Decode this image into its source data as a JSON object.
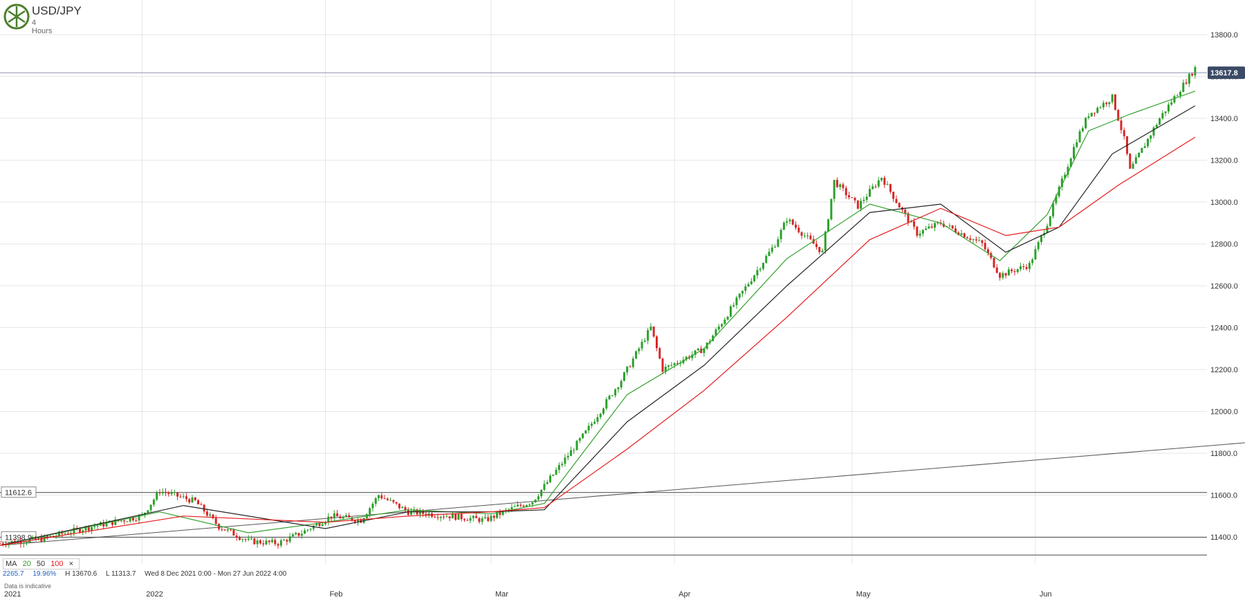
{
  "header": {
    "symbol": "USD/JPY",
    "timeframe": "4 Hours"
  },
  "legend": {
    "ma_label": "MA",
    "ma_periods": [
      "20",
      "50",
      "100"
    ],
    "close_symbol": "×"
  },
  "info": {
    "range_value": "2265.7",
    "range_pct": "19.96%",
    "high": "H 13670.6",
    "low": "L 11313.7",
    "period": "Wed 8 Dec 2021 0:00 - Mon 27 Jun 2022 4:00"
  },
  "note": "Data is indicative",
  "chart_data": {
    "type": "line",
    "title": "USD/JPY",
    "subtitle": "4 Hours",
    "ylim": [
      11300,
      13900
    ],
    "y_ticks": [
      11400,
      11600,
      11800,
      12000,
      12200,
      12400,
      12600,
      12800,
      13000,
      13200,
      13400,
      13600,
      13800
    ],
    "y_tick_labels": [
      "11400.0",
      "11600.0",
      "11800.0",
      "12000.0",
      "12200.0",
      "12400.0",
      "12600.0",
      "12800.0",
      "13000.0",
      "13200.0",
      "13400.0",
      "13600.0",
      "13800.0"
    ],
    "x_labels": [
      "2021",
      "2022",
      "Feb",
      "Mar",
      "Apr",
      "May",
      "Jun"
    ],
    "x_dates": [
      "2021-12-08",
      "2022-01-01",
      "2022-02-01",
      "2022-03-01",
      "2022-04-01",
      "2022-05-01",
      "2022-06-01"
    ],
    "x_range": [
      "2021-12-08",
      "2022-06-30"
    ],
    "current_price": 13617.8,
    "current_price_label": "13617.8",
    "horizontal_levels": [
      {
        "value": 11612.6,
        "label": "11612.6"
      },
      {
        "value": 11398.9,
        "label": "11398.9"
      },
      {
        "value": 11313.7,
        "label": ""
      }
    ],
    "trendline": {
      "start": [
        "2021-12-08",
        11360
      ],
      "end": [
        "2022-06-30",
        11850
      ]
    },
    "price_path": {
      "dates": [
        "2021-12-08",
        "2021-12-15",
        "2021-12-22",
        "2022-01-01",
        "2022-01-04",
        "2022-01-10",
        "2022-01-14",
        "2022-01-19",
        "2022-01-24",
        "2022-01-28",
        "2022-02-02",
        "2022-02-07",
        "2022-02-10",
        "2022-02-15",
        "2022-02-22",
        "2022-02-28",
        "2022-03-04",
        "2022-03-08",
        "2022-03-11",
        "2022-03-17",
        "2022-03-23",
        "2022-03-28",
        "2022-03-30",
        "2022-04-06",
        "2022-04-12",
        "2022-04-18",
        "2022-04-20",
        "2022-04-26",
        "2022-04-28",
        "2022-05-02",
        "2022-05-06",
        "2022-05-09",
        "2022-05-12",
        "2022-05-16",
        "2022-05-23",
        "2022-05-26",
        "2022-05-31",
        "2022-06-03",
        "2022-06-08",
        "2022-06-10",
        "2022-06-14",
        "2022-06-16",
        "2022-06-17",
        "2022-06-22",
        "2022-06-28"
      ],
      "values": [
        11370,
        11390,
        11440,
        11500,
        11620,
        11570,
        11450,
        11380,
        11370,
        11420,
        11500,
        11480,
        11600,
        11520,
        11500,
        11480,
        11530,
        11570,
        11680,
        11900,
        12150,
        12400,
        12200,
        12300,
        12550,
        12800,
        12920,
        12760,
        13100,
        12980,
        13120,
        12980,
        12850,
        12900,
        12800,
        12650,
        12700,
        12900,
        13300,
        13420,
        13500,
        13300,
        13150,
        13400,
        13640
      ]
    },
    "series": [
      {
        "name": "20",
        "color": "#33a02c",
        "dates": [
          "2021-12-08",
          "2022-01-04",
          "2022-01-19",
          "2022-02-01",
          "2022-02-15",
          "2022-03-01",
          "2022-03-10",
          "2022-03-24",
          "2022-04-06",
          "2022-04-20",
          "2022-05-04",
          "2022-05-16",
          "2022-05-26",
          "2022-06-03",
          "2022-06-10",
          "2022-06-17",
          "2022-06-28"
        ],
        "values": [
          11360,
          11520,
          11420,
          11470,
          11530,
          11510,
          11560,
          12080,
          12300,
          12730,
          12990,
          12900,
          12720,
          12940,
          13340,
          13420,
          13530
        ]
      },
      {
        "name": "50",
        "color": "#222222",
        "dates": [
          "2021-12-08",
          "2022-01-08",
          "2022-02-01",
          "2022-02-15",
          "2022-03-01",
          "2022-03-10",
          "2022-03-24",
          "2022-04-06",
          "2022-04-20",
          "2022-05-04",
          "2022-05-16",
          "2022-05-27",
          "2022-06-05",
          "2022-06-14",
          "2022-06-28"
        ],
        "values": [
          11360,
          11550,
          11440,
          11520,
          11520,
          11530,
          11950,
          12220,
          12600,
          12950,
          12990,
          12760,
          12880,
          13230,
          13460
        ]
      },
      {
        "name": "100",
        "color": "#e31a1c",
        "dates": [
          "2021-12-08",
          "2022-01-08",
          "2022-02-01",
          "2022-02-15",
          "2022-03-01",
          "2022-03-10",
          "2022-03-24",
          "2022-04-06",
          "2022-04-20",
          "2022-05-04",
          "2022-05-16",
          "2022-05-27",
          "2022-06-05",
          "2022-06-15",
          "2022-06-28"
        ],
        "values": [
          11360,
          11500,
          11470,
          11500,
          11520,
          11540,
          11820,
          12100,
          12450,
          12820,
          12970,
          12840,
          12880,
          13080,
          13310
        ]
      }
    ]
  }
}
